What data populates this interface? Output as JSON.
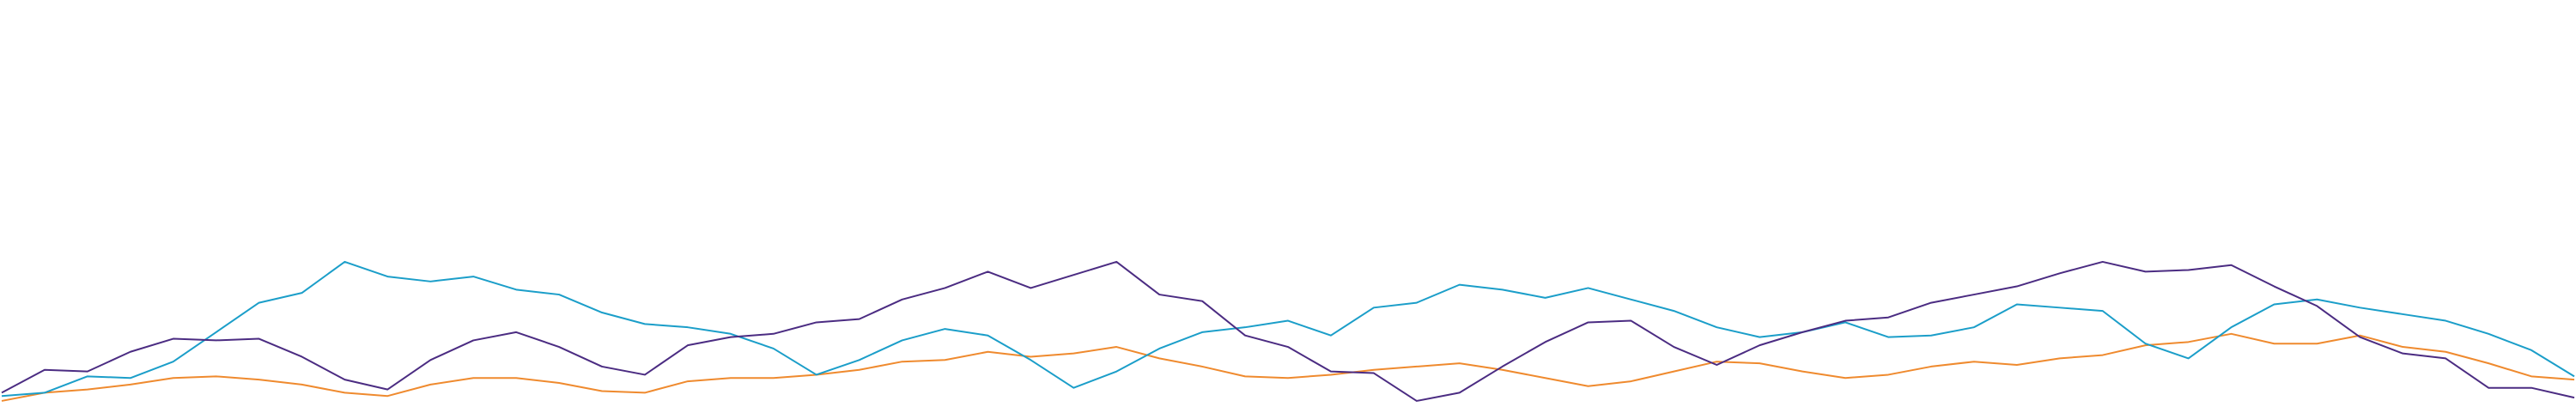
{
  "chart_data": {
    "type": "line",
    "ylim": [
      0,
      255
    ],
    "grid": false,
    "series": [
      {
        "color": "#ef8a2e",
        "values": [
          10,
          15,
          17,
          20,
          24,
          25,
          23,
          20,
          15,
          13,
          20,
          24,
          24,
          21,
          16,
          15,
          22,
          24,
          24,
          26,
          29,
          34,
          35,
          40,
          37,
          39,
          43,
          36,
          31,
          25,
          24,
          26,
          29,
          31,
          33,
          29,
          24,
          19,
          22,
          28,
          34,
          33,
          28,
          24,
          26,
          31,
          34,
          32,
          36,
          38,
          44,
          46,
          51,
          45,
          45,
          50,
          43,
          40,
          33,
          25,
          23
        ]
      },
      {
        "color": "#1b9ec9",
        "values": [
          13,
          15,
          25,
          24,
          34,
          52,
          70,
          76,
          95,
          86,
          83,
          86,
          78,
          75,
          64,
          57,
          55,
          51,
          42,
          26,
          35,
          47,
          54,
          50,
          35,
          18,
          28,
          42,
          52,
          55,
          59,
          50,
          67,
          70,
          81,
          78,
          73,
          79,
          72,
          65,
          55,
          49,
          52,
          58,
          49,
          50,
          55,
          69,
          67,
          65,
          45,
          36,
          55,
          69,
          72,
          67,
          63,
          59,
          51,
          41,
          25
        ]
      },
      {
        "color": "#4b2c82",
        "values": [
          15,
          29,
          28,
          40,
          48,
          47,
          48,
          37,
          23,
          17,
          35,
          47,
          52,
          43,
          31,
          26,
          44,
          49,
          51,
          58,
          60,
          72,
          79,
          89,
          79,
          87,
          95,
          75,
          71,
          50,
          43,
          28,
          27,
          10,
          15,
          31,
          46,
          58,
          59,
          43,
          32,
          44,
          52,
          59,
          61,
          70,
          75,
          80,
          88,
          95,
          89,
          90,
          93,
          80,
          68,
          49,
          39,
          36,
          18,
          18,
          12
        ]
      }
    ]
  }
}
